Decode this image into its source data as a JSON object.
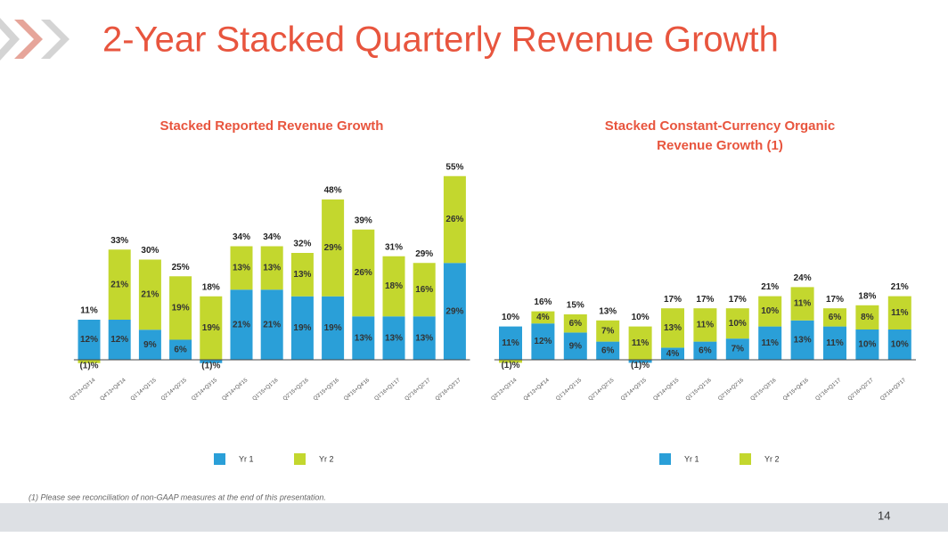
{
  "slide_title": "2-Year Stacked Quarterly Revenue Growth",
  "footnote": "(1) Please see reconciliation of non-GAAP measures at the end of this presentation.",
  "page_number": "14",
  "chart_data": [
    {
      "type": "stacked_bar",
      "title": "Stacked Reported Revenue Growth",
      "categories": [
        "Q3'13+Q3'14",
        "Q4'13+Q4'14",
        "Q1'14+Q1'15",
        "Q2'14+Q2'15",
        "Q3'14+Q3'15",
        "Q4'14+Q4'15",
        "Q1'15+Q1'16",
        "Q2'15+Q2'16",
        "Q3'15+Q3'16",
        "Q4'15+Q4'16",
        "Q1'16+Q1'17",
        "Q2'16+Q2'17",
        "Q3'16+Q3'17"
      ],
      "series": [
        {
          "name": "Yr 1",
          "color": "#2a9fd8",
          "values": [
            12,
            12,
            9,
            6,
            -1,
            21,
            21,
            19,
            19,
            13,
            13,
            13,
            29
          ],
          "value_labels": [
            "12%",
            "12%",
            "9%",
            "6%",
            "(1)%",
            "21%",
            "21%",
            "19%",
            "19%",
            "13%",
            "13%",
            "13%",
            "29%"
          ]
        },
        {
          "name": "Yr 2",
          "color": "#c3d72e",
          "values": [
            -1,
            21,
            21,
            19,
            19,
            13,
            13,
            13,
            29,
            26,
            18,
            16,
            26
          ],
          "value_labels": [
            "(1)%",
            "21%",
            "21%",
            "19%",
            "19%",
            "13%",
            "13%",
            "13%",
            "29%",
            "26%",
            "18%",
            "16%",
            "26%"
          ]
        }
      ],
      "totals": [
        11,
        33,
        30,
        25,
        18,
        34,
        34,
        32,
        48,
        39,
        31,
        29,
        55
      ],
      "total_labels": [
        "11%",
        "33%",
        "30%",
        "25%",
        "18%",
        "34%",
        "34%",
        "32%",
        "48%",
        "39%",
        "31%",
        "29%",
        "55%"
      ],
      "ylim": [
        -4,
        60
      ]
    },
    {
      "type": "stacked_bar",
      "title": "Stacked Constant-Currency Organic Revenue Growth (1)",
      "categories": [
        "Q3'13+Q3'14",
        "Q4'13+Q4'14",
        "Q1'14+Q1'15",
        "Q2'14+Q2'15",
        "Q3'14+Q3'15",
        "Q4'14+Q4'15",
        "Q1'15+Q1'16",
        "Q2'15+Q2'16",
        "Q3'15+Q3'16",
        "Q4'15+Q4'16",
        "Q1'16+Q1'17",
        "Q2'16+Q2'17",
        "Q3'16+Q3'17"
      ],
      "series": [
        {
          "name": "Yr 1",
          "color": "#2a9fd8",
          "values": [
            11,
            12,
            9,
            6,
            -1,
            4,
            6,
            7,
            11,
            13,
            11,
            10,
            10
          ],
          "value_labels": [
            "11%",
            "12%",
            "9%",
            "6%",
            "(1)%",
            "4%",
            "6%",
            "7%",
            "11%",
            "13%",
            "11%",
            "10%",
            "10%"
          ]
        },
        {
          "name": "Yr 2",
          "color": "#c3d72e",
          "values": [
            -1,
            4,
            6,
            7,
            11,
            13,
            11,
            10,
            10,
            11,
            6,
            8,
            11
          ],
          "value_labels": [
            "(1)%",
            "4%",
            "6%",
            "7%",
            "11%",
            "13%",
            "11%",
            "10%",
            "10%",
            "11%",
            "6%",
            "8%",
            "11%"
          ]
        }
      ],
      "totals": [
        10,
        16,
        15,
        13,
        10,
        17,
        17,
        17,
        21,
        24,
        17,
        18,
        21
      ],
      "total_labels": [
        "10%",
        "16%",
        "15%",
        "13%",
        "10%",
        "17%",
        "17%",
        "17%",
        "21%",
        "24%",
        "17%",
        "18%",
        "21%"
      ],
      "ylim": [
        -4,
        60
      ]
    }
  ]
}
